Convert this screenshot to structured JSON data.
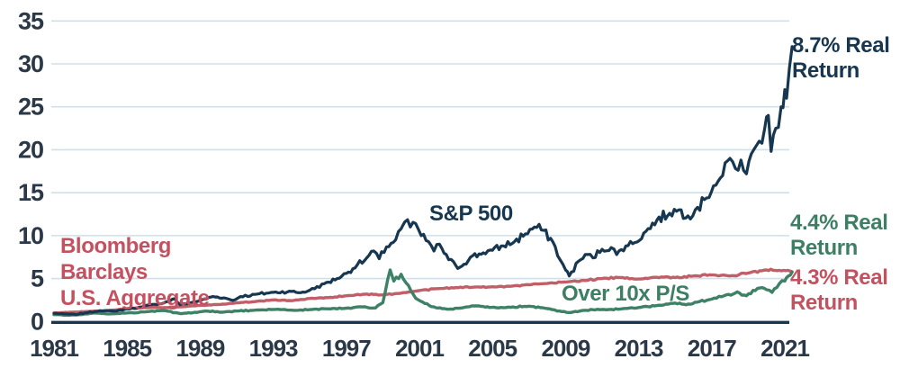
{
  "colors": {
    "sp500_line": "#16374f",
    "bond_line": "#c05f68",
    "growth_line": "#3f8166",
    "sp500_text": "#16374f",
    "bond_text": "#c4515f",
    "growth_text": "#3c7f63",
    "gridline": "#cfe0ea",
    "axis_line": "#16374f",
    "tick_text": "#2b3847",
    "background": "#ffffff"
  },
  "labels": {
    "sp500": "S&P 500",
    "bloomberg_line1": "Bloomberg Barclays",
    "bloomberg_line2": "U.S. Aggregate",
    "over_10x": "Over 10x P/S",
    "sp500_return": "8.7% Real Return",
    "growth_return": "4.4% Real Return",
    "bond_return": "4.3% Real Return"
  },
  "chart_data": {
    "type": "line",
    "title": "",
    "xlabel": "",
    "ylabel": "",
    "xlim": [
      1980.8,
      2021.6
    ],
    "ylim": [
      0,
      35
    ],
    "x_ticks": [
      1981,
      1985,
      1989,
      1993,
      1997,
      2001,
      2005,
      2009,
      2013,
      2017,
      2021
    ],
    "y_ticks": [
      0,
      5,
      10,
      15,
      20,
      25,
      30,
      35
    ],
    "grid": "horizontal",
    "legend_position": "inline-labels",
    "series": [
      {
        "name": "S&P 500",
        "annotation": "8.7% Real Return",
        "color": "#16374f",
        "x": [
          1981.0,
          1981.6,
          1982.2,
          1982.7,
          1983.5,
          1984.3,
          1985.0,
          1985.8,
          1986.5,
          1987.0,
          1987.6,
          1987.9,
          1988.4,
          1989.0,
          1989.7,
          1990.3,
          1990.8,
          1991.2,
          1992.0,
          1993.0,
          1994.0,
          1994.5,
          1995.0,
          1995.8,
          1996.5,
          1997.0,
          1997.6,
          1998.0,
          1998.5,
          1998.8,
          1999.2,
          1999.7,
          2000.0,
          2000.2,
          2000.5,
          2000.8,
          2001.1,
          2001.5,
          2001.8,
          2002.1,
          2002.6,
          2003.0,
          2003.2,
          2003.8,
          2004.5,
          2005.0,
          2005.6,
          2006.2,
          2006.8,
          2007.3,
          2007.8,
          2008.3,
          2008.7,
          2009.0,
          2009.2,
          2009.7,
          2010.2,
          2010.5,
          2011.0,
          2011.5,
          2011.8,
          2012.3,
          2012.8,
          2013.4,
          2014.0,
          2014.7,
          2015.2,
          2015.7,
          2016.1,
          2016.6,
          2017.1,
          2017.6,
          2018.0,
          2018.3,
          2018.6,
          2018.9,
          2019.3,
          2019.6,
          2019.9,
          2020.1,
          2020.25,
          2020.5,
          2020.8,
          2021.0,
          2021.1,
          2021.25,
          2021.4
        ],
        "y": [
          0.95,
          0.88,
          0.82,
          1.0,
          1.25,
          1.2,
          1.45,
          1.7,
          2.0,
          2.15,
          2.65,
          1.95,
          2.15,
          2.45,
          2.9,
          2.75,
          2.45,
          2.9,
          3.15,
          3.4,
          3.5,
          3.35,
          3.65,
          4.4,
          5.0,
          5.6,
          6.6,
          7.1,
          8.2,
          7.3,
          8.7,
          9.5,
          10.8,
          11.6,
          11.0,
          11.4,
          10.0,
          9.3,
          8.2,
          9.0,
          7.2,
          6.5,
          6.3,
          7.5,
          8.0,
          8.3,
          8.8,
          9.3,
          10.2,
          11.0,
          10.6,
          9.3,
          7.2,
          6.0,
          5.3,
          7.0,
          7.8,
          7.4,
          8.4,
          8.6,
          7.8,
          8.8,
          9.2,
          10.5,
          11.8,
          12.6,
          13.0,
          12.3,
          13.0,
          14.2,
          15.8,
          17.0,
          19.0,
          17.8,
          18.8,
          17.2,
          20.0,
          21.0,
          22.5,
          24.0,
          19.8,
          22.5,
          25.0,
          27.0,
          26.0,
          29.5,
          32.0
        ]
      },
      {
        "name": "Bloomberg Barclays U.S. Aggregate",
        "annotation": "4.3% Real Return",
        "color": "#c05f68",
        "x": [
          1981,
          1982,
          1983,
          1984,
          1985,
          1986,
          1987,
          1988,
          1989,
          1990,
          1991,
          1992,
          1993,
          1994,
          1995,
          1996,
          1997,
          1998,
          1999,
          2000,
          2001,
          2002,
          2003,
          2004,
          2005,
          2006,
          2007,
          2008,
          2009,
          2010,
          2011,
          2012,
          2013,
          2014,
          2015,
          2016,
          2017,
          2018,
          2019,
          2020,
          2020.7,
          2021.4
        ],
        "y": [
          1.0,
          1.08,
          1.18,
          1.28,
          1.5,
          1.62,
          1.6,
          1.72,
          1.88,
          1.98,
          2.18,
          2.32,
          2.52,
          2.42,
          2.68,
          2.78,
          3.0,
          3.18,
          3.1,
          3.3,
          3.6,
          3.82,
          3.95,
          4.0,
          4.05,
          4.1,
          4.28,
          4.42,
          4.6,
          4.78,
          5.0,
          5.12,
          4.95,
          5.15,
          5.12,
          5.3,
          5.42,
          5.3,
          5.65,
          6.0,
          5.95,
          5.8
        ]
      },
      {
        "name": "Over 10x P/S",
        "annotation": "4.4% Real Return",
        "color": "#3f8166",
        "x": [
          1981.0,
          1981.8,
          1982.5,
          1983.2,
          1984.0,
          1985.0,
          1986.0,
          1987.0,
          1987.9,
          1988.6,
          1989.3,
          1990.2,
          1991.0,
          1992.0,
          1993.0,
          1994.0,
          1995.0,
          1996.0,
          1997.0,
          1998.0,
          1998.6,
          1999.0,
          1999.4,
          1999.6,
          2000.0,
          2000.4,
          2000.8,
          2001.3,
          2001.9,
          2002.6,
          2003.2,
          2004.0,
          2004.6,
          2005.2,
          2006.0,
          2007.0,
          2008.0,
          2008.8,
          2009.3,
          2010.0,
          2011.0,
          2012.0,
          2013.0,
          2014.0,
          2015.0,
          2015.6,
          2016.2,
          2017.0,
          2017.8,
          2018.4,
          2018.9,
          2019.5,
          2020.0,
          2020.3,
          2020.7,
          2021.0,
          2021.2,
          2021.4
        ],
        "y": [
          0.8,
          0.72,
          0.8,
          1.0,
          0.88,
          1.0,
          1.12,
          1.28,
          0.92,
          1.02,
          1.22,
          1.08,
          1.22,
          1.32,
          1.4,
          1.32,
          1.38,
          1.48,
          1.55,
          1.72,
          1.58,
          2.2,
          6.0,
          4.7,
          5.5,
          4.2,
          2.7,
          2.1,
          1.6,
          1.42,
          1.55,
          1.82,
          1.68,
          1.6,
          1.65,
          1.78,
          1.5,
          1.15,
          1.05,
          1.3,
          1.4,
          1.45,
          1.62,
          1.85,
          2.15,
          1.95,
          2.25,
          2.6,
          3.1,
          3.45,
          3.0,
          3.85,
          3.7,
          3.4,
          4.4,
          4.7,
          5.3,
          5.75
        ]
      }
    ]
  }
}
